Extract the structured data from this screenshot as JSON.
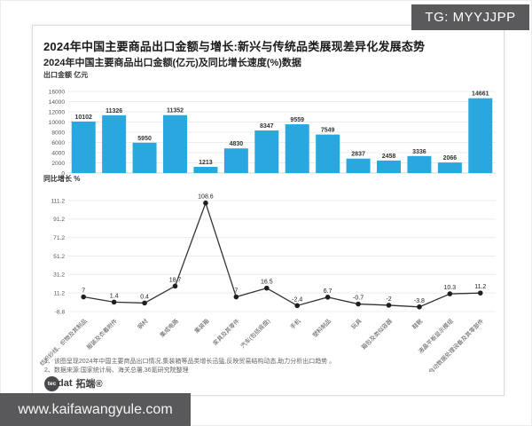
{
  "watermarks": {
    "top_right": "TG: MYYJJPP",
    "bottom_left": "www.kaifawangyule.com"
  },
  "header": {
    "title": "2024年中国主要商品出口金额与增长:新兴与传统品类展现差异化发展态势",
    "subtitle": "2024年中国主要商品出口金额(亿元)及同比增长速度(%)数据"
  },
  "chart_data": [
    {
      "type": "bar",
      "title": "出口金额 亿元",
      "categories": [
        "纺织纱线、织物及其制品",
        "服装及衣着附件",
        "钢材",
        "集成电路",
        "集装箱",
        "家具及其零件",
        "汽车(包括底盘)",
        "手机",
        "塑料制品",
        "玩具",
        "箱包及类似容器",
        "鞋靴",
        "液晶平板显示模组",
        "自动数据处理设备及其零部件"
      ],
      "values": [
        10102,
        11326,
        5950,
        11352,
        1213,
        4830,
        8347,
        9559,
        7549,
        2837,
        2458,
        3336,
        2066,
        14661
      ],
      "ylim": [
        0,
        16000
      ],
      "yticks": [
        0,
        2000,
        4000,
        6000,
        8000,
        10000,
        12000,
        14000,
        16000
      ],
      "grid": true,
      "color": "#29a8e0"
    },
    {
      "type": "line",
      "title": "同比增长 %",
      "categories": [
        "纺织纱线、织物及其制品",
        "服装及衣着附件",
        "钢材",
        "集成电路",
        "集装箱",
        "家具及其零件",
        "汽车(包括底盘)",
        "手机",
        "塑料制品",
        "玩具",
        "箱包及类似容器",
        "鞋靴",
        "液晶平板显示模组",
        "自动数据处理设备及其零部件"
      ],
      "values": [
        7,
        1.4,
        0.4,
        18.7,
        108.6,
        7,
        16.5,
        -2.4,
        6.7,
        -0.7,
        -2,
        -3.8,
        10.3,
        11.2
      ],
      "ylim": [
        -8.8,
        111.2
      ],
      "yticks": [
        111.2,
        91.2,
        71.2,
        51.2,
        31.2,
        11.2,
        -8.8
      ],
      "grid": true,
      "color": "#333333",
      "marker_color": "#1f1f1f"
    }
  ],
  "footnotes": [
    "1、该图呈现2024年中国主要商品出口情况,集装箱等品类增长迅猛,反映贸易结构动态,助力分析出口趋势 。",
    "2、数据来源:国家统计局、海关总署,36氪研究院整理"
  ],
  "logo": {
    "circle_text": "tec",
    "suffix_text": "dat",
    "brand": "拓端®"
  },
  "style_colors": {
    "bar_fill": "#29a8e0",
    "line_stroke": "#333333",
    "watermark_bg": "#59595b",
    "gridline": "#ececec"
  }
}
